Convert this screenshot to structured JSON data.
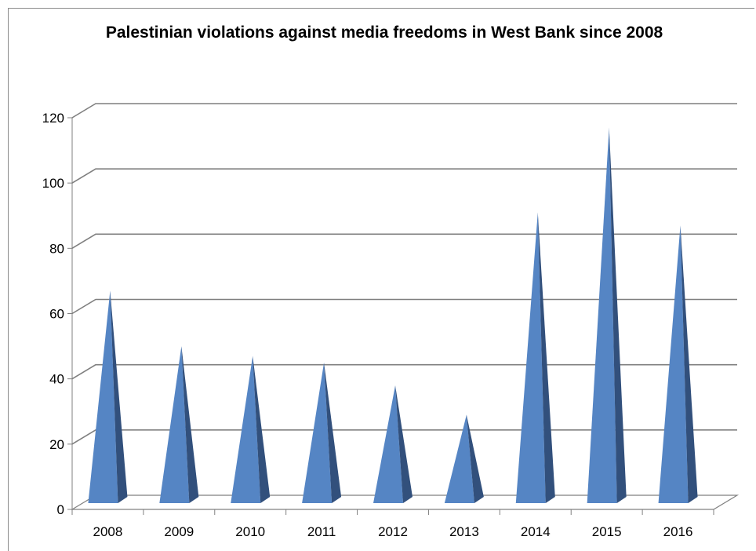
{
  "chart_data": {
    "type": "bar",
    "title": "Palestinian violations against media freedoms in West Bank since 2008",
    "categories": [
      "2008",
      "2009",
      "2010",
      "2011",
      "2012",
      "2013",
      "2014",
      "2015",
      "2016"
    ],
    "values": [
      67,
      50,
      47,
      45,
      38,
      29,
      91,
      117,
      87
    ],
    "ylim": [
      0,
      120
    ],
    "yticks": [
      "0",
      "20",
      "40",
      "60",
      "80",
      "100",
      "120"
    ],
    "xlabel": "",
    "ylabel": "",
    "grid": true,
    "legend": "none",
    "bar_shape": "pyramid",
    "colors": {
      "bar_front": "#5585c4",
      "bar_side": "#32507c",
      "grid": "#7f7f7f",
      "axis": "#808080"
    }
  }
}
